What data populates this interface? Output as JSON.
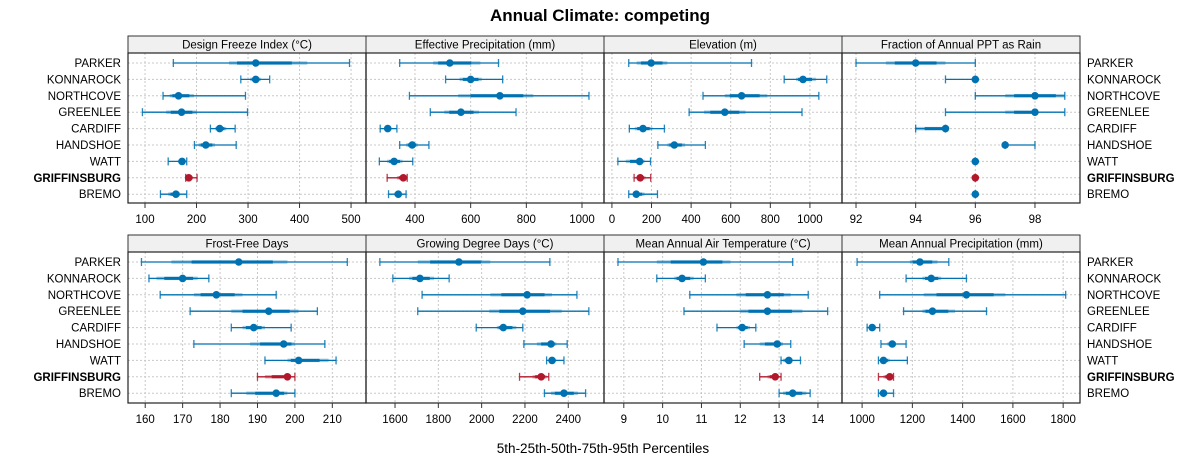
{
  "chart_data": {
    "type": "dotplot-percentiles",
    "title": "Annual Climate: competing",
    "xlabel": "5th-25th-50th-75th-95th Percentiles",
    "ylabel": "",
    "highlight_site": "GRIFFINSBURG",
    "colors": {
      "default": "#0072b2",
      "highlight": "#b2182b",
      "strip_bg": "#f0f0f0",
      "grid": "#c8c8c8"
    },
    "grid": true,
    "sites": [
      "PARKER",
      "KONNAROCK",
      "NORTHCOVE",
      "GREENLEE",
      "CARDIFF",
      "HANDSHOE",
      "WATT",
      "GRIFFINSBURG",
      "BREMO"
    ],
    "panels": [
      {
        "title": "Design Freeze Index (°C)",
        "xlim": [
          67,
          529
        ],
        "ticks": [
          100,
          200,
          300,
          400,
          500
        ],
        "series": [
          {
            "site": "PARKER",
            "p5": 155,
            "p25": 263,
            "p50": 315,
            "p75": 415,
            "p95": 497
          },
          {
            "site": "KONNAROCK",
            "p5": 286,
            "p25": 304,
            "p50": 315,
            "p75": 325,
            "p95": 342
          },
          {
            "site": "NORTHCOVE",
            "p5": 135,
            "p25": 148,
            "p50": 165,
            "p75": 195,
            "p95": 295
          },
          {
            "site": "GREENLEE",
            "p5": 95,
            "p25": 141,
            "p50": 171,
            "p75": 201,
            "p95": 299
          },
          {
            "site": "CARDIFF",
            "p5": 227,
            "p25": 236,
            "p50": 245,
            "p75": 258,
            "p95": 275
          },
          {
            "site": "HANDSHOE",
            "p5": 196,
            "p25": 204,
            "p50": 218,
            "p75": 236,
            "p95": 277
          },
          {
            "site": "WATT",
            "p5": 145,
            "p25": 164,
            "p50": 172,
            "p75": 178,
            "p95": 181
          },
          {
            "site": "GRIFFINSBURG",
            "p5": 179,
            "p25": 181,
            "p50": 185,
            "p75": 193,
            "p95": 201
          },
          {
            "site": "BREMO",
            "p5": 130,
            "p25": 145,
            "p50": 160,
            "p75": 168,
            "p95": 181
          }
        ]
      },
      {
        "title": "Effective Precipitation (mm)",
        "xlim": [
          224,
          1079
        ],
        "ticks": [
          400,
          600,
          800,
          1000
        ],
        "series": [
          {
            "site": "PARKER",
            "p5": 345,
            "p25": 465,
            "p50": 525,
            "p75": 635,
            "p95": 700
          },
          {
            "site": "KONNAROCK",
            "p5": 510,
            "p25": 560,
            "p50": 600,
            "p75": 640,
            "p95": 715
          },
          {
            "site": "NORTHCOVE",
            "p5": 380,
            "p25": 555,
            "p50": 705,
            "p75": 825,
            "p95": 1025
          },
          {
            "site": "GREENLEE",
            "p5": 455,
            "p25": 505,
            "p50": 565,
            "p75": 630,
            "p95": 763
          },
          {
            "site": "CARDIFF",
            "p5": 275,
            "p25": 290,
            "p50": 302,
            "p75": 315,
            "p95": 335
          },
          {
            "site": "HANDSHOE",
            "p5": 345,
            "p25": 368,
            "p50": 390,
            "p75": 410,
            "p95": 450
          },
          {
            "site": "WATT",
            "p5": 272,
            "p25": 300,
            "p50": 325,
            "p75": 355,
            "p95": 392
          },
          {
            "site": "GRIFFINSBURG",
            "p5": 300,
            "p25": 335,
            "p50": 358,
            "p75": 368,
            "p95": 372
          },
          {
            "site": "BREMO",
            "p5": 305,
            "p25": 325,
            "p50": 340,
            "p75": 352,
            "p95": 368
          }
        ]
      },
      {
        "title": "Elevation (m)",
        "xlim": [
          -40,
          1162
        ],
        "ticks": [
          0,
          200,
          400,
          600,
          800,
          1000
        ],
        "series": [
          {
            "site": "PARKER",
            "p5": 85,
            "p25": 125,
            "p50": 198,
            "p75": 280,
            "p95": 705
          },
          {
            "site": "KONNAROCK",
            "p5": 870,
            "p25": 930,
            "p50": 965,
            "p75": 1030,
            "p95": 1085
          },
          {
            "site": "NORTHCOVE",
            "p5": 460,
            "p25": 570,
            "p50": 655,
            "p75": 785,
            "p95": 1045
          },
          {
            "site": "GREENLEE",
            "p5": 390,
            "p25": 465,
            "p50": 570,
            "p75": 675,
            "p95": 960
          },
          {
            "site": "CARDIFF",
            "p5": 88,
            "p25": 115,
            "p50": 157,
            "p75": 205,
            "p95": 265
          },
          {
            "site": "HANDSHOE",
            "p5": 232,
            "p25": 280,
            "p50": 315,
            "p75": 370,
            "p95": 472
          },
          {
            "site": "WATT",
            "p5": 30,
            "p25": 70,
            "p50": 140,
            "p75": 165,
            "p95": 195
          },
          {
            "site": "GRIFFINSBURG",
            "p5": 112,
            "p25": 125,
            "p50": 143,
            "p75": 170,
            "p95": 196
          },
          {
            "site": "BREMO",
            "p5": 85,
            "p25": 105,
            "p50": 123,
            "p75": 165,
            "p95": 230
          }
        ]
      },
      {
        "title": "Fraction of Annual PPT as Rain",
        "xlim": [
          91.53,
          99.51
        ],
        "ticks": [
          92,
          94,
          96,
          98
        ],
        "series": [
          {
            "site": "PARKER",
            "p5": 92,
            "p25": 93,
            "p50": 94,
            "p75": 95,
            "p95": 96
          },
          {
            "site": "KONNAROCK",
            "p5": 95,
            "p25": 96,
            "p50": 96,
            "p75": 96,
            "p95": 96
          },
          {
            "site": "NORTHCOVE",
            "p5": 96,
            "p25": 97,
            "p50": 98,
            "p75": 99,
            "p95": 99
          },
          {
            "site": "GREENLEE",
            "p5": 95,
            "p25": 97,
            "p50": 98,
            "p75": 98,
            "p95": 99
          },
          {
            "site": "CARDIFF",
            "p5": 94,
            "p25": 94,
            "p50": 95,
            "p75": 95,
            "p95": 95
          },
          {
            "site": "HANDSHOE",
            "p5": 97,
            "p25": 97,
            "p50": 97,
            "p75": 97,
            "p95": 98
          },
          {
            "site": "WATT",
            "p5": 96,
            "p25": 96,
            "p50": 96,
            "p75": 96,
            "p95": 96
          },
          {
            "site": "GRIFFINSBURG",
            "p5": 96,
            "p25": 96,
            "p50": 96,
            "p75": 96,
            "p95": 96
          },
          {
            "site": "BREMO",
            "p5": 96,
            "p25": 96,
            "p50": 96,
            "p75": 96,
            "p95": 96
          }
        ]
      },
      {
        "title": "Frost-Free Days",
        "xlim": [
          155.4,
          219
        ],
        "ticks": [
          160,
          170,
          180,
          190,
          200,
          210
        ],
        "series": [
          {
            "site": "PARKER",
            "p5": 159,
            "p25": 167,
            "p50": 185,
            "p75": 198,
            "p95": 214
          },
          {
            "site": "KONNAROCK",
            "p5": 161,
            "p25": 163,
            "p50": 170,
            "p75": 174,
            "p95": 177
          },
          {
            "site": "NORTHCOVE",
            "p5": 164,
            "p25": 173,
            "p50": 179,
            "p75": 186,
            "p95": 195
          },
          {
            "site": "GREENLEE",
            "p5": 172,
            "p25": 183,
            "p50": 193,
            "p75": 201,
            "p95": 206
          },
          {
            "site": "CARDIFF",
            "p5": 183,
            "p25": 186,
            "p50": 189,
            "p75": 192,
            "p95": 199
          },
          {
            "site": "HANDSHOE",
            "p5": 173,
            "p25": 188,
            "p50": 197,
            "p75": 200,
            "p95": 208
          },
          {
            "site": "WATT",
            "p5": 192,
            "p25": 198,
            "p50": 201,
            "p75": 209,
            "p95": 211
          },
          {
            "site": "GRIFFINSBURG",
            "p5": 190,
            "p25": 192,
            "p50": 198,
            "p75": 199,
            "p95": 200
          },
          {
            "site": "BREMO",
            "p5": 183,
            "p25": 187,
            "p50": 195,
            "p75": 198,
            "p95": 200
          }
        ]
      },
      {
        "title": "Growing Degree Days (°C)",
        "xlim": [
          1466,
          2565
        ],
        "ticks": [
          1600,
          1800,
          2000,
          2200,
          2400
        ],
        "series": [
          {
            "site": "PARKER",
            "p5": 1530,
            "p25": 1705,
            "p50": 1895,
            "p75": 2040,
            "p95": 2315
          },
          {
            "site": "KONNAROCK",
            "p5": 1590,
            "p25": 1665,
            "p50": 1715,
            "p75": 1780,
            "p95": 1850
          },
          {
            "site": "NORTHCOVE",
            "p5": 1725,
            "p25": 2040,
            "p50": 2210,
            "p75": 2325,
            "p95": 2440
          },
          {
            "site": "GREENLEE",
            "p5": 1705,
            "p25": 2035,
            "p50": 2190,
            "p75": 2370,
            "p95": 2495
          },
          {
            "site": "CARDIFF",
            "p5": 1975,
            "p25": 2070,
            "p50": 2100,
            "p75": 2160,
            "p95": 2190
          },
          {
            "site": "HANDSHOE",
            "p5": 2195,
            "p25": 2255,
            "p50": 2320,
            "p75": 2345,
            "p95": 2395
          },
          {
            "site": "WATT",
            "p5": 2300,
            "p25": 2310,
            "p50": 2325,
            "p75": 2345,
            "p95": 2380
          },
          {
            "site": "GRIFFINSBURG",
            "p5": 2175,
            "p25": 2235,
            "p50": 2275,
            "p75": 2300,
            "p95": 2310
          },
          {
            "site": "BREMO",
            "p5": 2290,
            "p25": 2320,
            "p50": 2380,
            "p75": 2445,
            "p95": 2480
          }
        ]
      },
      {
        "title": "Mean Annual Air Temperature (°C)",
        "xlim": [
          8.49,
          14.62
        ],
        "ticks": [
          9,
          10,
          11,
          12,
          13,
          14
        ],
        "series": [
          {
            "site": "PARKER",
            "p5": 8.85,
            "p25": 9.85,
            "p50": 11.05,
            "p75": 11.75,
            "p95": 13.35
          },
          {
            "site": "KONNAROCK",
            "p5": 9.85,
            "p25": 10.3,
            "p50": 10.5,
            "p75": 10.8,
            "p95": 11.1
          },
          {
            "site": "NORTHCOVE",
            "p5": 10.7,
            "p25": 11.9,
            "p50": 12.7,
            "p75": 13.3,
            "p95": 13.75
          },
          {
            "site": "GREENLEE",
            "p5": 10.55,
            "p25": 12.0,
            "p50": 12.7,
            "p75": 13.6,
            "p95": 14.25
          },
          {
            "site": "CARDIFF",
            "p5": 11.4,
            "p25": 11.9,
            "p50": 12.05,
            "p75": 12.25,
            "p95": 12.4
          },
          {
            "site": "HANDSHOE",
            "p5": 12.1,
            "p25": 12.5,
            "p50": 12.95,
            "p75": 13.1,
            "p95": 13.3
          },
          {
            "site": "WATT",
            "p5": 13.05,
            "p25": 13.1,
            "p50": 13.25,
            "p75": 13.35,
            "p95": 13.55
          },
          {
            "site": "GRIFFINSBURG",
            "p5": 12.5,
            "p25": 12.7,
            "p50": 12.9,
            "p75": 12.95,
            "p95": 13.05
          },
          {
            "site": "BREMO",
            "p5": 13.0,
            "p25": 13.1,
            "p50": 13.35,
            "p75": 13.7,
            "p95": 13.8
          }
        ]
      },
      {
        "title": "Mean Annual Precipitation (mm)",
        "xlim": [
          920,
          1867
        ],
        "ticks": [
          1000,
          1200,
          1400,
          1600,
          1800
        ],
        "series": [
          {
            "site": "PARKER",
            "p5": 980,
            "p25": 1190,
            "p50": 1230,
            "p75": 1300,
            "p95": 1345
          },
          {
            "site": "KONNAROCK",
            "p5": 1175,
            "p25": 1240,
            "p50": 1275,
            "p75": 1315,
            "p95": 1415
          },
          {
            "site": "NORTHCOVE",
            "p5": 1070,
            "p25": 1245,
            "p50": 1415,
            "p75": 1570,
            "p95": 1810
          },
          {
            "site": "GREENLEE",
            "p5": 1165,
            "p25": 1240,
            "p50": 1280,
            "p75": 1370,
            "p95": 1495
          },
          {
            "site": "CARDIFF",
            "p5": 1020,
            "p25": 1030,
            "p50": 1040,
            "p75": 1055,
            "p95": 1070
          },
          {
            "site": "HANDSHOE",
            "p5": 1075,
            "p25": 1100,
            "p50": 1120,
            "p75": 1135,
            "p95": 1175
          },
          {
            "site": "WATT",
            "p5": 1065,
            "p25": 1075,
            "p50": 1085,
            "p75": 1110,
            "p95": 1180
          },
          {
            "site": "GRIFFINSBURG",
            "p5": 1065,
            "p25": 1085,
            "p50": 1110,
            "p75": 1120,
            "p95": 1125
          },
          {
            "site": "BREMO",
            "p5": 1065,
            "p25": 1070,
            "p50": 1085,
            "p75": 1100,
            "p95": 1125
          }
        ]
      }
    ]
  }
}
